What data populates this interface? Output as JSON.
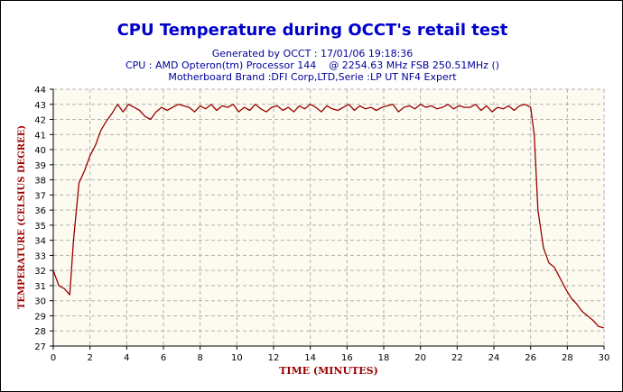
{
  "chart_data": {
    "type": "line",
    "title": "CPU Temperature during OCCT's retail test",
    "subtitle_lines": [
      "Generated by OCCT : 17/01/06 19:18:36",
      "CPU : AMD Opteron(tm) Processor 144    @ 2254.63 MHz FSB 250.51MHz ()",
      "Motherboard Brand :DFI Corp,LTD,Serie :LP UT NF4 Expert"
    ],
    "xlabel": "TIME (MINUTES)",
    "ylabel": "TEMPERATURE (CELSIUS DEGREE)",
    "xlim": [
      0,
      30
    ],
    "ylim": [
      27,
      44
    ],
    "x_ticks": [
      0,
      2,
      4,
      6,
      8,
      10,
      12,
      14,
      16,
      18,
      20,
      22,
      24,
      26,
      28,
      30
    ],
    "y_ticks": [
      27,
      28,
      29,
      30,
      31,
      32,
      33,
      34,
      35,
      36,
      37,
      38,
      39,
      40,
      41,
      42,
      43,
      44
    ],
    "grid": true,
    "colors": {
      "title": "#0000cc",
      "subtitle": "#000099",
      "axis_label": "#990000",
      "line": "#990000",
      "plot_background": "#fdfbf0",
      "grid": "#b0b0b0"
    },
    "series": [
      {
        "x": [
          0,
          0.3,
          0.6,
          0.9,
          1.1,
          1.4,
          1.7,
          2.0,
          2.3,
          2.6,
          2.9,
          3.2,
          3.5,
          3.8,
          4.1,
          4.4,
          4.7,
          5.0,
          5.3,
          5.6,
          5.9,
          6.2,
          6.5,
          6.8,
          7.1,
          7.4,
          7.7,
          8.0,
          8.3,
          8.6,
          8.9,
          9.2,
          9.5,
          9.8,
          10.1,
          10.4,
          10.7,
          11.0,
          11.3,
          11.6,
          11.9,
          12.2,
          12.5,
          12.8,
          13.1,
          13.4,
          13.7,
          14.0,
          14.3,
          14.6,
          14.9,
          15.2,
          15.5,
          15.8,
          16.1,
          16.4,
          16.7,
          17.0,
          17.3,
          17.6,
          17.9,
          18.2,
          18.5,
          18.8,
          19.1,
          19.4,
          19.7,
          20.0,
          20.3,
          20.6,
          20.9,
          21.2,
          21.5,
          21.8,
          22.1,
          22.4,
          22.7,
          23.0,
          23.3,
          23.6,
          23.9,
          24.2,
          24.5,
          24.8,
          25.1,
          25.4,
          25.7,
          26.0,
          26.2,
          26.4,
          26.7,
          27.0,
          27.3,
          27.6,
          27.9,
          28.2,
          28.5,
          28.8,
          29.1,
          29.4,
          29.7,
          30.0
        ],
        "y": [
          32.0,
          31.0,
          30.8,
          30.4,
          34.0,
          37.8,
          38.6,
          39.6,
          40.3,
          41.3,
          41.9,
          42.4,
          43.0,
          42.5,
          43.0,
          42.8,
          42.6,
          42.2,
          42.0,
          42.5,
          42.8,
          42.6,
          42.8,
          43.0,
          42.9,
          42.8,
          42.5,
          42.9,
          42.7,
          43.0,
          42.6,
          42.9,
          42.8,
          43.0,
          42.5,
          42.8,
          42.6,
          43.0,
          42.7,
          42.5,
          42.8,
          42.9,
          42.6,
          42.8,
          42.5,
          42.9,
          42.7,
          43.0,
          42.8,
          42.5,
          42.9,
          42.7,
          42.6,
          42.8,
          43.0,
          42.6,
          42.9,
          42.7,
          42.8,
          42.6,
          42.8,
          42.9,
          43.0,
          42.5,
          42.8,
          42.9,
          42.7,
          43.0,
          42.8,
          42.9,
          42.7,
          42.8,
          43.0,
          42.7,
          42.9,
          42.8,
          42.8,
          43.0,
          42.6,
          42.9,
          42.5,
          42.8,
          42.7,
          42.9,
          42.6,
          42.9,
          43.0,
          42.8,
          41.0,
          36.0,
          33.5,
          32.5,
          32.2,
          31.5,
          30.8,
          30.2,
          29.8,
          29.3,
          29.0,
          28.7,
          28.3,
          28.2
        ]
      }
    ]
  }
}
